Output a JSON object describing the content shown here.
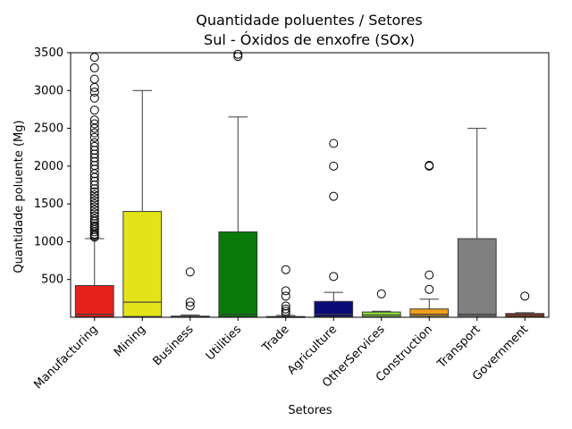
{
  "chart_data": {
    "type": "box",
    "title": "Quantidade poluentes / Setores",
    "subtitle": "Sul - Óxidos de enxofre (SOx)",
    "xlabel": "Setores",
    "ylabel": "Quantidade poluente (Mg)",
    "ylim": [
      0,
      3500
    ],
    "yticks": [
      500,
      1000,
      1500,
      2000,
      2500,
      3000,
      3500
    ],
    "grid": false,
    "categories": [
      "Manufacturing",
      "Mining",
      "Business",
      "Utilities",
      "Trade",
      "Agriculture",
      "OtherServices",
      "Construction",
      "Transport",
      "Government"
    ],
    "boxes": [
      {
        "category": "Manufacturing",
        "color": "#e8211f",
        "whisker_low": 0,
        "q1": 5,
        "median": 40,
        "q3": 420,
        "whisker_high": 1040,
        "outliers": [
          1060,
          1080,
          1100,
          1130,
          1160,
          1190,
          1210,
          1240,
          1270,
          1300,
          1340,
          1380,
          1420,
          1460,
          1500,
          1540,
          1580,
          1620,
          1660,
          1700,
          1750,
          1800,
          1850,
          1900,
          1960,
          2010,
          2060,
          2110,
          2160,
          2210,
          2260,
          2310,
          2380,
          2440,
          2500,
          2560,
          2610,
          2740,
          2900,
          2980,
          3040,
          3150,
          3300,
          3440
        ]
      },
      {
        "category": "Mining",
        "color": "#e3e31a",
        "whisker_low": 0,
        "q1": 10,
        "median": 200,
        "q3": 1400,
        "whisker_high": 3000,
        "outliers": []
      },
      {
        "category": "Business",
        "color": "#d9d9d9",
        "whisker_low": 0,
        "q1": 0,
        "median": 5,
        "q3": 15,
        "whisker_high": 30,
        "outliers": [
          150,
          200,
          600
        ]
      },
      {
        "category": "Utilities",
        "color": "#0a7a0a",
        "whisker_low": 0,
        "q1": 5,
        "median": 40,
        "q3": 1130,
        "whisker_high": 2650,
        "outliers": [
          3450,
          3480
        ]
      },
      {
        "category": "Trade",
        "color": "#d9d9d9",
        "whisker_low": 0,
        "q1": 0,
        "median": 3,
        "q3": 10,
        "whisker_high": 25,
        "outliers": [
          50,
          80,
          110,
          150,
          280,
          350,
          630
        ]
      },
      {
        "category": "Agriculture",
        "color": "#0b0b7a",
        "whisker_low": 0,
        "q1": 10,
        "median": 40,
        "q3": 210,
        "whisker_high": 330,
        "outliers": [
          540,
          1600,
          2000,
          2300
        ]
      },
      {
        "category": "OtherServices",
        "color": "#8fdd3a",
        "whisker_low": 0,
        "q1": 5,
        "median": 30,
        "q3": 70,
        "whisker_high": 80,
        "outliers": [
          310
        ]
      },
      {
        "category": "Construction",
        "color": "#f0a21a",
        "whisker_low": 0,
        "q1": 15,
        "median": 40,
        "q3": 110,
        "whisker_high": 240,
        "outliers": [
          370,
          560,
          2000,
          2010
        ]
      },
      {
        "category": "Transport",
        "color": "#808080",
        "whisker_low": 0,
        "q1": 15,
        "median": 40,
        "q3": 1040,
        "whisker_high": 2500,
        "outliers": []
      },
      {
        "category": "Government",
        "color": "#9e3a1e",
        "whisker_low": 0,
        "q1": 5,
        "median": 30,
        "q3": 50,
        "whisker_high": 60,
        "outliers": [
          280
        ]
      }
    ]
  }
}
